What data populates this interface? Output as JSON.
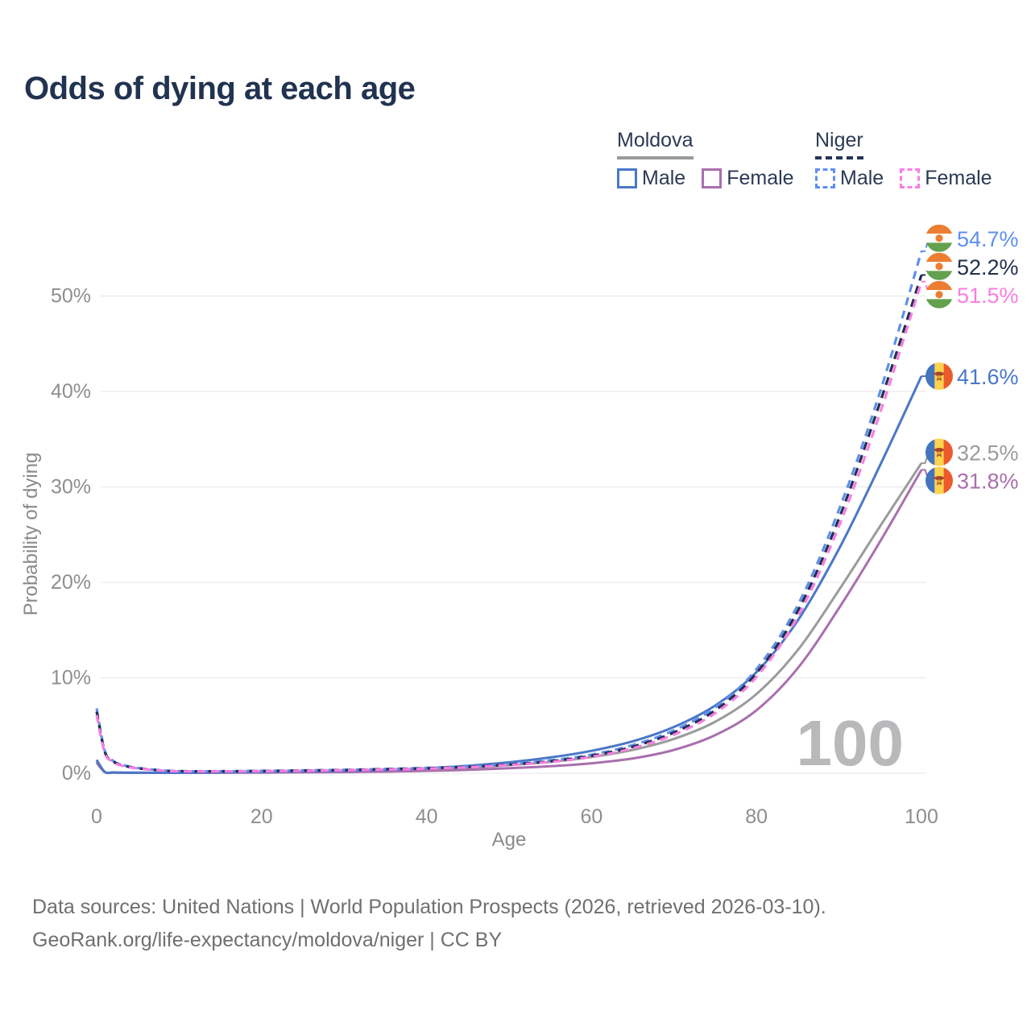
{
  "title": "Odds of dying at each age",
  "watermark_age_label": "100",
  "legend": {
    "groups": [
      {
        "name": "Moldova",
        "underline": "solid",
        "underline_color": "#9b9b9b",
        "items": [
          {
            "label": "Male",
            "color": "#4a77c8",
            "dashed": false
          },
          {
            "label": "Female",
            "color": "#a96fad",
            "dashed": false
          }
        ]
      },
      {
        "name": "Niger",
        "underline": "dashed",
        "underline_color": "#24355a",
        "items": [
          {
            "label": "Male",
            "color": "#5f8fee",
            "dashed": true
          },
          {
            "label": "Female",
            "color": "#f97de2",
            "dashed": true
          }
        ]
      }
    ]
  },
  "chart_data": {
    "type": "line",
    "title": "Odds of dying at each age",
    "xlabel": "Age",
    "ylabel": "Probability of dying",
    "xlim": [
      0,
      100
    ],
    "ylim": [
      0,
      57
    ],
    "grid": true,
    "legend_position": "top-right",
    "hover_age_label": "100",
    "xticks": [
      {
        "v": 0,
        "label": "0"
      },
      {
        "v": 20,
        "label": "20"
      },
      {
        "v": 40,
        "label": "40"
      },
      {
        "v": 60,
        "label": "60"
      },
      {
        "v": 80,
        "label": "80"
      },
      {
        "v": 100,
        "label": "100"
      }
    ],
    "yticks": [
      {
        "v": 0,
        "label": "0%"
      },
      {
        "v": 10,
        "label": "10%"
      },
      {
        "v": 20,
        "label": "20%"
      },
      {
        "v": 30,
        "label": "30%"
      },
      {
        "v": 40,
        "label": "40%"
      },
      {
        "v": 50,
        "label": "50%"
      }
    ],
    "ages": [
      0,
      1,
      2,
      3,
      5,
      8,
      10,
      15,
      20,
      25,
      30,
      35,
      40,
      45,
      50,
      55,
      60,
      65,
      70,
      75,
      80,
      85,
      90,
      95,
      100
    ],
    "series": [
      {
        "name": "Moldova",
        "country": "moldova",
        "sex": "all",
        "color": "#9b9b9b",
        "dashed": false,
        "end_label": "32.5%",
        "values": [
          1.25,
          0.13,
          0.08,
          0.06,
          0.05,
          0.045,
          0.045,
          0.07,
          0.11,
          0.15,
          0.19,
          0.27,
          0.39,
          0.57,
          0.84,
          1.19,
          1.7,
          2.45,
          3.6,
          5.4,
          8.3,
          12.9,
          19.2,
          25.9,
          32.5
        ]
      },
      {
        "name": "Moldova Female",
        "country": "moldova",
        "sex": "female",
        "color": "#a96fad",
        "dashed": false,
        "end_label": "31.8%",
        "values": [
          1.1,
          0.11,
          0.07,
          0.05,
          0.04,
          0.04,
          0.04,
          0.05,
          0.07,
          0.09,
          0.12,
          0.17,
          0.25,
          0.36,
          0.52,
          0.73,
          1.05,
          1.55,
          2.45,
          4.0,
          6.6,
          11.0,
          17.3,
          24.3,
          31.8
        ]
      },
      {
        "name": "Moldova Male",
        "country": "moldova",
        "sex": "male",
        "color": "#4a77c8",
        "dashed": false,
        "end_label": "41.6%",
        "values": [
          1.4,
          0.14,
          0.09,
          0.07,
          0.06,
          0.05,
          0.05,
          0.09,
          0.15,
          0.2,
          0.26,
          0.36,
          0.52,
          0.78,
          1.15,
          1.65,
          2.35,
          3.35,
          4.85,
          7.1,
          10.6,
          16.0,
          23.5,
          32.3,
          41.6
        ]
      },
      {
        "name": "Niger Male",
        "country": "niger",
        "sex": "male",
        "color": "#5f8fee",
        "dashed": true,
        "end_label": "54.7%",
        "values": [
          6.8,
          2.3,
          1.3,
          0.9,
          0.55,
          0.3,
          0.22,
          0.21,
          0.25,
          0.3,
          0.36,
          0.45,
          0.56,
          0.72,
          0.97,
          1.35,
          1.95,
          2.95,
          4.5,
          6.9,
          10.9,
          17.6,
          27.6,
          40.0,
          54.7
        ]
      },
      {
        "name": "Niger",
        "country": "niger",
        "sex": "all",
        "color": "#22304d",
        "dashed": true,
        "end_label": "52.2%",
        "values": [
          6.45,
          2.2,
          1.25,
          0.85,
          0.52,
          0.28,
          0.21,
          0.2,
          0.23,
          0.28,
          0.33,
          0.42,
          0.52,
          0.67,
          0.91,
          1.26,
          1.83,
          2.78,
          4.27,
          6.6,
          10.5,
          17.0,
          26.7,
          38.9,
          52.2
        ]
      },
      {
        "name": "Niger Female",
        "country": "niger",
        "sex": "female",
        "color": "#f97de2",
        "dashed": true,
        "end_label": "51.5%",
        "values": [
          6.1,
          2.1,
          1.2,
          0.8,
          0.5,
          0.27,
          0.2,
          0.19,
          0.22,
          0.26,
          0.31,
          0.39,
          0.49,
          0.63,
          0.86,
          1.18,
          1.72,
          2.62,
          4.05,
          6.3,
          10.1,
          16.4,
          25.9,
          37.8,
          51.5
        ]
      }
    ]
  },
  "flags": {
    "niger": {
      "band_top": "#ec7e31",
      "band_mid": "#ffffff",
      "band_bottom": "#63a14e",
      "disc": "#ec7e31"
    },
    "moldova": {
      "band_left": "#4374bd",
      "band_mid": "#fdd24c",
      "band_right": "#ec5a2b",
      "emblem": "#a8432a",
      "emblem_accent": "#e8b33a"
    }
  },
  "colors": {
    "title_text": "#203350",
    "legend_text": "#2b3a55",
    "tick_text": "#8e8e8e",
    "axis_label_text": "#8a8a8a",
    "gridline": "#e9e9ec",
    "watermark": "#b9b9bc",
    "footer_text": "#6f6f6f"
  },
  "footer": {
    "line1": "Data sources: United Nations | World Population Prospects (2026, retrieved 2026-03-10).",
    "line2": "GeoRank.org/life-expectancy/moldova/niger | CC BY"
  }
}
